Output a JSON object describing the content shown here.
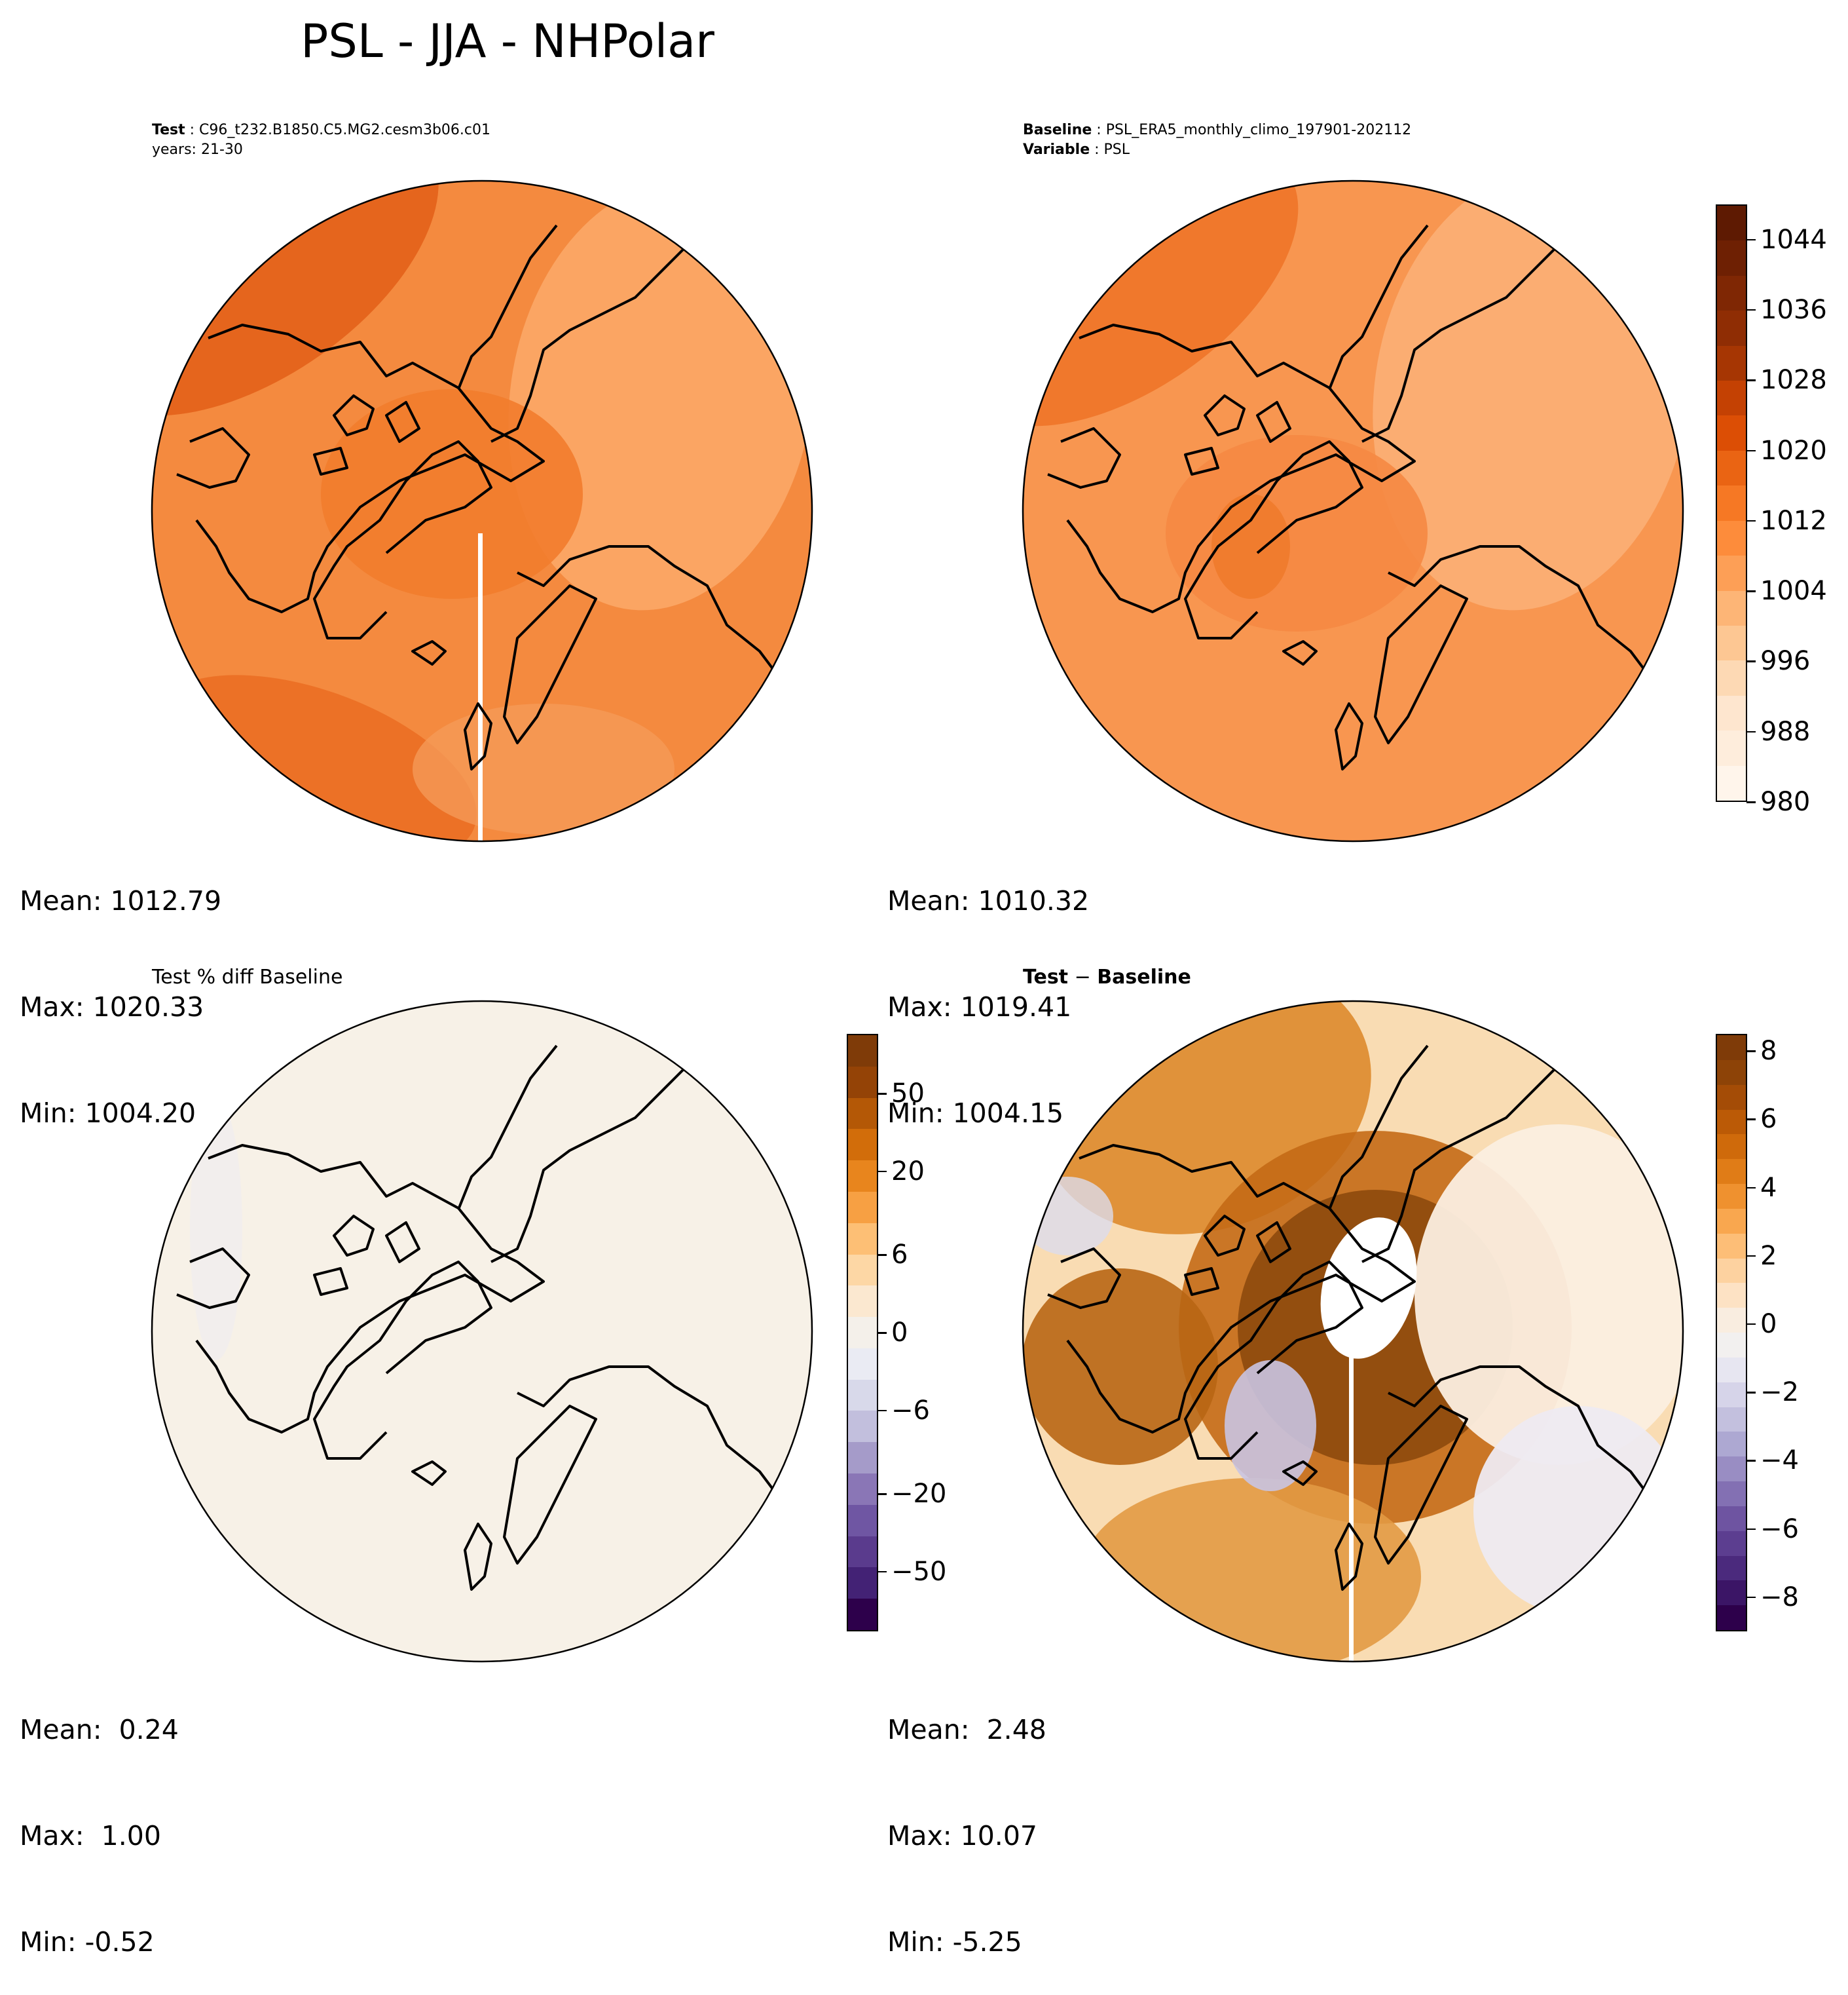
{
  "title": "PSL - JJA - NHPolar",
  "panels": {
    "test": {
      "caption_label": "Test",
      "caption_value": "C96_t232.B1850.C5.MG2.cesm3b06.c01",
      "caption_line2": "years: 21-30",
      "mean": "Mean: 1012.79",
      "max": "Max: 1020.33",
      "min": "Min: 1004.20"
    },
    "baseline": {
      "caption_label": "Baseline",
      "caption_value": "PSL_ERA5_monthly_climo_197901-202112",
      "caption2_label": "Variable",
      "caption2_value": "PSL",
      "mean": "Mean: 1010.32",
      "max": "Max: 1019.41",
      "min": "Min: 1004.15"
    },
    "pctdiff": {
      "title": "Test % diff Baseline",
      "mean": "Mean:  0.24",
      "max": "Max:  1.00",
      "min": "Min: -0.52"
    },
    "diff": {
      "title_a": "Test",
      "title_sep": " − ",
      "title_b": "Baseline",
      "mean": "Mean:  2.48",
      "max": "Max: 10.07",
      "min": "Min: -5.25"
    }
  },
  "chart_data": [
    {
      "type": "heatmap",
      "name_ref": "Test",
      "projection": "north polar stereographic",
      "region": "NHPolar",
      "stats": {
        "mean": 1012.79,
        "max": 1020.33,
        "min": 1004.2
      }
    },
    {
      "type": "heatmap",
      "name_ref": "Baseline",
      "projection": "north polar stereographic",
      "region": "NHPolar",
      "stats": {
        "mean": 1010.32,
        "max": 1019.41,
        "min": 1004.15
      },
      "colorbar": {
        "colormap": "Oranges",
        "range": [
          980,
          1048
        ],
        "ticks": [
          980,
          988,
          996,
          1004,
          1012,
          1020,
          1028,
          1036,
          1044
        ],
        "tick_labels": [
          "980",
          "988",
          "996",
          "1004",
          "1012",
          "1020",
          "1028",
          "1036",
          "1044"
        ],
        "colors": [
          "#fff5eb",
          "#feeddc",
          "#fee6cf",
          "#fdd9b4",
          "#fdc793",
          "#fdb576",
          "#fd9f56",
          "#fd8c3b",
          "#f67824",
          "#ea6413",
          "#dc4e05",
          "#c44103",
          "#a63603",
          "#8f2d04",
          "#7f2704",
          "#6e2003",
          "#5e1a02"
        ]
      }
    },
    {
      "type": "heatmap",
      "name_ref": "Test % diff Baseline",
      "projection": "north polar stereographic",
      "stats": {
        "mean": 0.24,
        "max": 1.0,
        "min": -0.52
      },
      "colorbar": {
        "colormap": "PuOr_r",
        "ticks": [
          -50,
          -20,
          -6,
          0,
          6,
          20,
          50
        ],
        "tick_labels": [
          "−50",
          "−20",
          "−6",
          "0",
          "6",
          "20",
          "50"
        ],
        "colors": [
          "#2d004b",
          "#432275",
          "#5a3b8d",
          "#6f56a3",
          "#8a76b6",
          "#a59bc9",
          "#c2bfdd",
          "#d8d9ea",
          "#eaebf3",
          "#f4f0ea",
          "#fbe8d0",
          "#fdd7a5",
          "#fdbf75",
          "#f7a043",
          "#e8851d",
          "#d26d0a",
          "#b45806",
          "#944306",
          "#7f3b08"
        ]
      }
    },
    {
      "type": "heatmap",
      "name_ref": "Test − Baseline",
      "projection": "north polar stereographic",
      "stats": {
        "mean": 2.48,
        "max": 10.07,
        "min": -5.25
      },
      "colorbar": {
        "colormap": "PuOr_r",
        "range": [
          -9,
          8.5
        ],
        "ticks": [
          -8,
          -6,
          -4,
          -2,
          0,
          2,
          4,
          6,
          8
        ],
        "tick_labels": [
          "−8",
          "−6",
          "−4",
          "−2",
          "0",
          "2",
          "4",
          "6",
          "8"
        ],
        "colors": [
          "#2d004b",
          "#3b1566",
          "#4b2a7d",
          "#5c3e90",
          "#6e54a1",
          "#8370b3",
          "#998dc3",
          "#ada8d2",
          "#c3c0de",
          "#d6d4e9",
          "#e7e6f1",
          "#f2f0ef",
          "#f9ede0",
          "#fde2c4",
          "#fdd2a0",
          "#fdbe77",
          "#f9a74f",
          "#ef912f",
          "#e07c17",
          "#cf6a0b",
          "#bb5a06",
          "#a44c06",
          "#8d4307",
          "#7f3b08"
        ]
      }
    }
  ]
}
